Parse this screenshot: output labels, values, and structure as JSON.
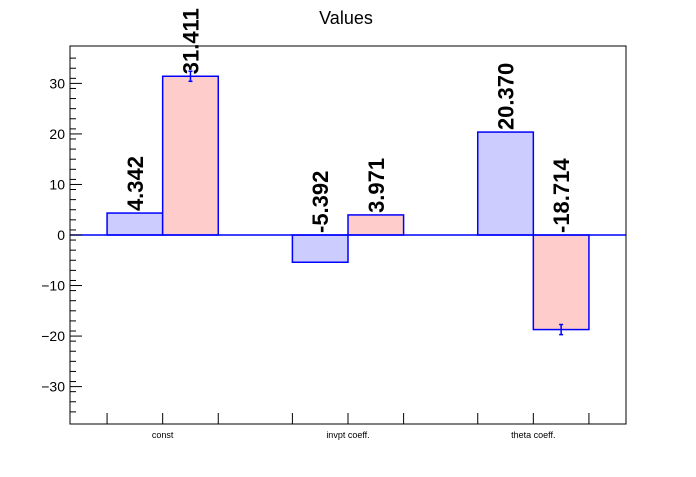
{
  "chart_data": {
    "type": "bar",
    "title": "Values",
    "xlabel": "",
    "ylabel": "",
    "categories": [
      "const",
      "invpt coeff.",
      "theta coeff."
    ],
    "series": [
      {
        "values": [
          4.342,
          -5.392,
          20.37
        ],
        "labels": [
          "4.342",
          "-5.392",
          "20.370"
        ],
        "errors": [
          0,
          0,
          0
        ],
        "fill": "#ccccff",
        "stroke": "#0000ff"
      },
      {
        "values": [
          31.411,
          3.971,
          -18.714
        ],
        "labels": [
          "31.411",
          "3.971",
          "-18.714"
        ],
        "errors": [
          1.0,
          0,
          1.0
        ],
        "fill": "#ffcccc",
        "stroke": "#0000ff"
      }
    ],
    "ylim": [
      -37.4,
      37.4
    ],
    "yticks": [
      -30,
      -20,
      -10,
      0,
      10,
      20,
      30
    ],
    "ytick_labels": [
      "−30",
      "−20",
      "−10",
      "0",
      "10",
      "20",
      "30"
    ],
    "grid": false,
    "legend": "none",
    "baseline_color": "#0000ff"
  }
}
